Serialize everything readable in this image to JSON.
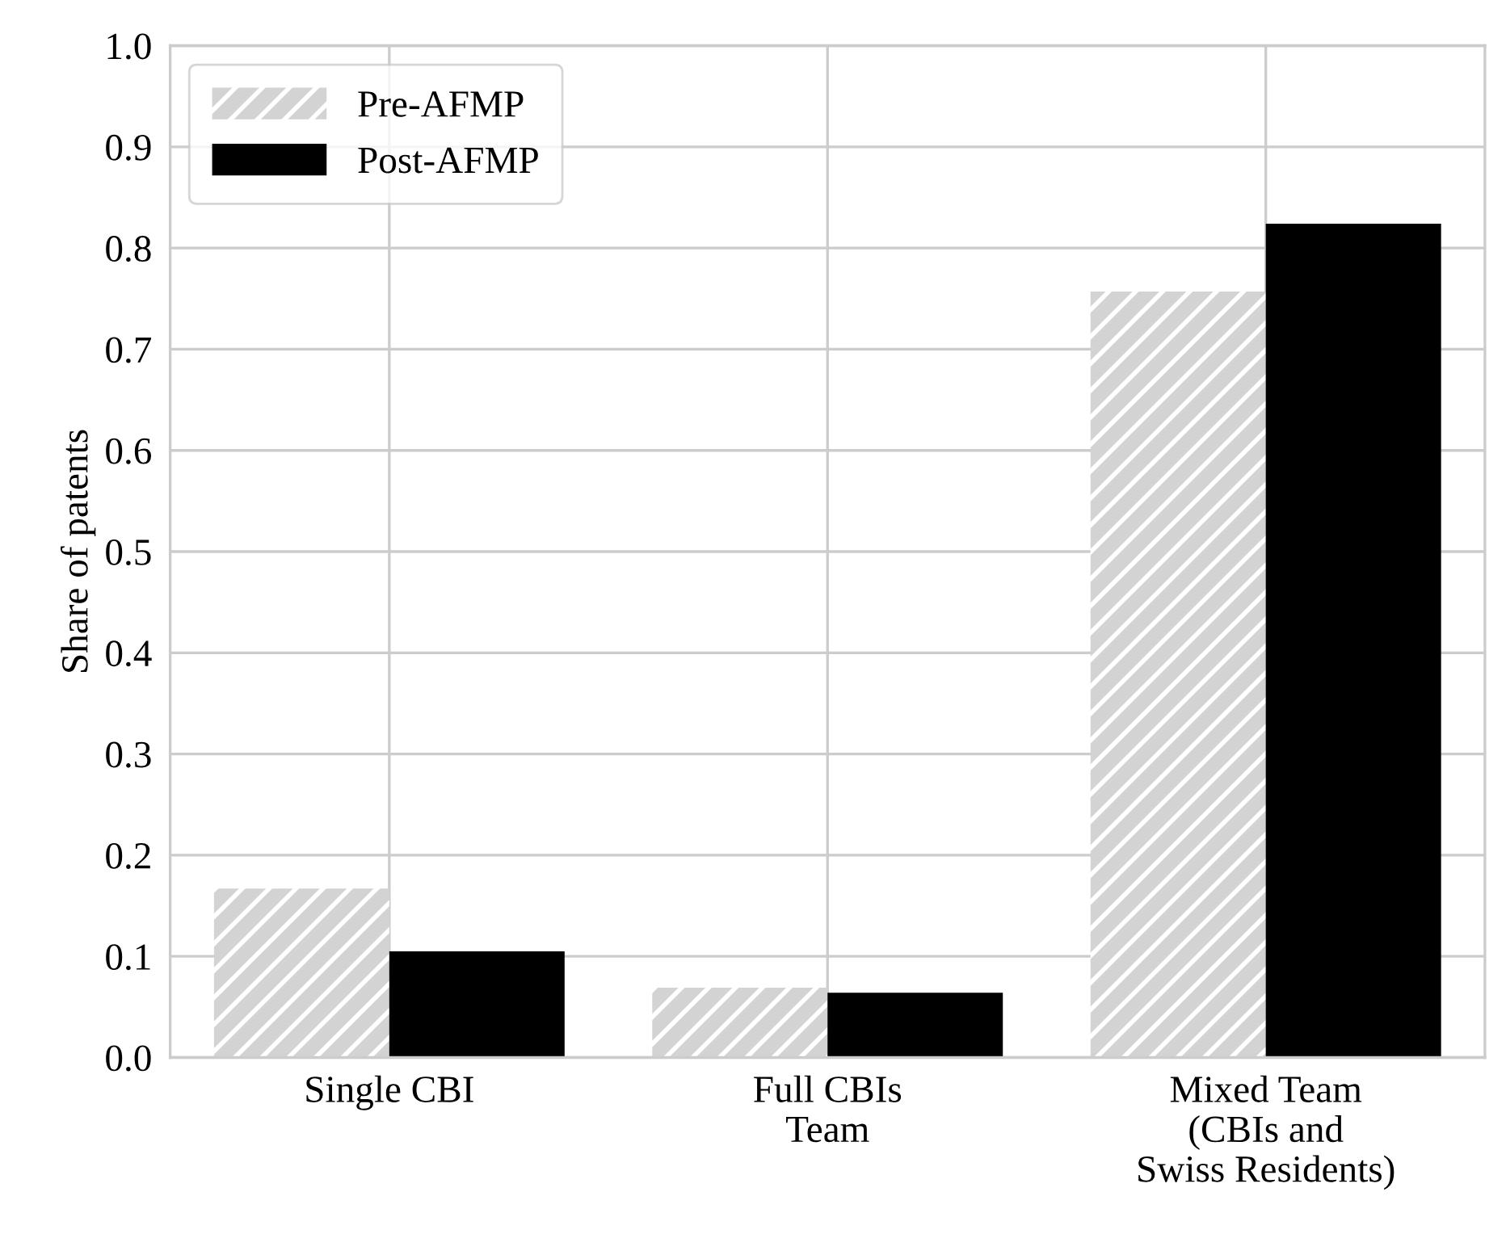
{
  "chart_data": {
    "type": "bar",
    "ylabel": "Share of patents",
    "categories": [
      "Single CBI",
      "Full CBIs\nTeam",
      "Mixed Team\n(CBIs and\nSwiss Residents)"
    ],
    "series": [
      {
        "name": "Pre-AFMP",
        "color": "#d3d3d3",
        "values": [
          0.167,
          0.069,
          0.757
        ]
      },
      {
        "name": "Post-AFMP",
        "color": "#000000",
        "values": [
          0.105,
          0.064,
          0.824
        ]
      }
    ],
    "ylim": [
      0.0,
      1.0
    ],
    "yticks": [
      {
        "value": 0,
        "label": "0.0"
      },
      0.1,
      0.2,
      0.3,
      0.4,
      0.5,
      0.6,
      0.7,
      0.8,
      0.9,
      {
        "value": 1,
        "label": "1.0"
      }
    ],
    "grid": true,
    "legend": "top left"
  }
}
